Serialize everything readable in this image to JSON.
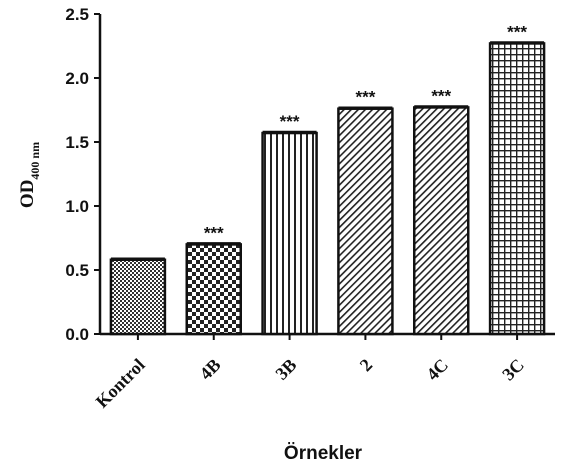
{
  "chart_data": {
    "type": "bar",
    "title": "",
    "xlabel": "Örnekler",
    "ylabel": {
      "main": "OD",
      "sub": "400 nm"
    },
    "ylim": [
      0,
      2.5
    ],
    "yticks": [
      "0.0",
      "0.5",
      "1.0",
      "1.5",
      "2.0",
      "2.5"
    ],
    "grid": false,
    "categories": [
      "Kontrol",
      "4B",
      "3B",
      "2",
      "4C",
      "3C"
    ],
    "values": [
      0.58,
      0.7,
      1.57,
      1.76,
      1.77,
      2.27
    ],
    "significance": [
      "",
      "***",
      "***",
      "***",
      "***",
      "***"
    ],
    "patterns": [
      "dense-check",
      "checker",
      "vertical-lines",
      "diag-lines",
      "diag-lines",
      "grid"
    ]
  }
}
